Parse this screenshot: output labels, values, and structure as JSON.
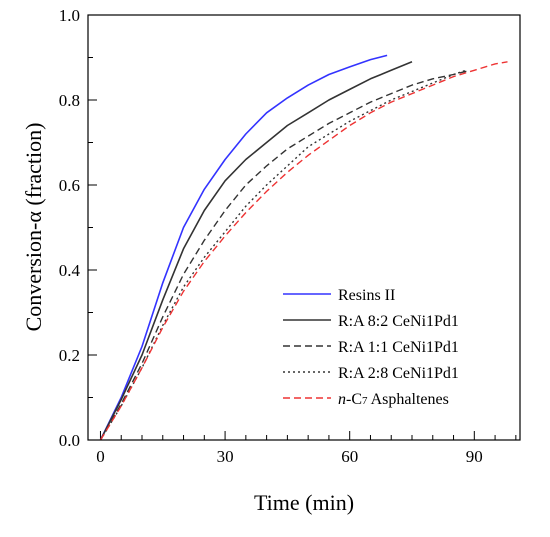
{
  "chart_data": {
    "type": "line",
    "xlabel": "Time (min)",
    "ylabel": "Conversion-α (fraction)",
    "xlim": [
      -3,
      101
    ],
    "ylim": [
      0,
      1.0
    ],
    "xticks": [
      0,
      30,
      60,
      90
    ],
    "xtick_labels": [
      "0",
      "30",
      "60",
      "90"
    ],
    "yticks": [
      0,
      0.2,
      0.4,
      0.6,
      0.8,
      1.0
    ],
    "ytick_labels": [
      "0.0",
      "0.2",
      "0.4",
      "0.6",
      "0.8",
      "1.0"
    ],
    "x_minor_step": 5,
    "y_minor_step": 0.1,
    "grid": false,
    "legend_position": "bottom-right",
    "series": [
      {
        "name": "Resins II",
        "color": "#3333ff",
        "dash": "solid",
        "x": [
          0,
          5,
          10,
          15,
          20,
          25,
          30,
          35,
          40,
          45,
          50,
          55,
          60,
          65,
          69
        ],
        "y": [
          0,
          0.1,
          0.22,
          0.37,
          0.5,
          0.59,
          0.66,
          0.72,
          0.77,
          0.805,
          0.835,
          0.86,
          0.878,
          0.895,
          0.905
        ]
      },
      {
        "name": "R:A 8:2 CeNi1Pd1",
        "color": "#333333",
        "dash": "solid",
        "x": [
          0,
          5,
          10,
          15,
          20,
          25,
          30,
          35,
          40,
          45,
          50,
          55,
          60,
          65,
          70,
          75
        ],
        "y": [
          0,
          0.095,
          0.2,
          0.33,
          0.45,
          0.54,
          0.61,
          0.66,
          0.7,
          0.74,
          0.77,
          0.8,
          0.825,
          0.85,
          0.87,
          0.89
        ]
      },
      {
        "name": "R:A 1:1 CeNi1Pd1",
        "color": "#333333",
        "dash": "long-dash",
        "x": [
          0,
          5,
          10,
          15,
          20,
          25,
          30,
          35,
          40,
          45,
          50,
          55,
          60,
          65,
          70,
          75,
          80,
          85,
          89
        ],
        "y": [
          0,
          0.085,
          0.18,
          0.29,
          0.39,
          0.47,
          0.54,
          0.6,
          0.645,
          0.685,
          0.715,
          0.745,
          0.77,
          0.795,
          0.815,
          0.835,
          0.85,
          0.86,
          0.87
        ]
      },
      {
        "name": "R:A 2:8 CeNi1Pd1",
        "color": "#333333",
        "dash": "dotted",
        "x": [
          0,
          5,
          10,
          15,
          20,
          25,
          30,
          35,
          40,
          45,
          50,
          55,
          60,
          65,
          70,
          75,
          80,
          85,
          88
        ],
        "y": [
          0,
          0.08,
          0.17,
          0.27,
          0.36,
          0.43,
          0.49,
          0.55,
          0.6,
          0.645,
          0.69,
          0.72,
          0.75,
          0.775,
          0.8,
          0.82,
          0.84,
          0.86,
          0.87
        ]
      },
      {
        "name_prefix_italic": "n",
        "name_mid": "-C",
        "name_sub": "7",
        "name_suffix": " Asphaltenes",
        "color": "#ee3333",
        "dash": "long-dash",
        "x": [
          0,
          5,
          10,
          15,
          20,
          25,
          30,
          35,
          40,
          45,
          50,
          55,
          60,
          65,
          70,
          75,
          80,
          85,
          90,
          95,
          98
        ],
        "y": [
          0,
          0.08,
          0.17,
          0.265,
          0.35,
          0.42,
          0.48,
          0.535,
          0.585,
          0.63,
          0.67,
          0.705,
          0.74,
          0.77,
          0.795,
          0.815,
          0.835,
          0.855,
          0.87,
          0.885,
          0.89
        ]
      }
    ]
  }
}
